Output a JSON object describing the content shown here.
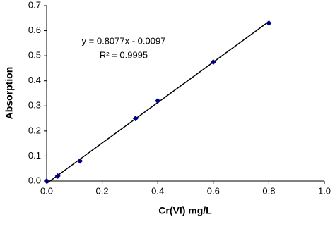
{
  "chart_data": {
    "type": "scatter",
    "x_label": "Cr(VI) mg/L",
    "y_label": "Absorption",
    "equation": "y = 0.8077x - 0.0097",
    "r_squared": "R² = 0.9995",
    "trendline": {
      "slope": 0.8077,
      "intercept": -0.0097
    },
    "series": [
      {
        "name": "Absorption",
        "color": "#000080",
        "x": [
          0,
          0.04,
          0.12,
          0.32,
          0.4,
          0.6,
          0.8
        ],
        "values": [
          0,
          0.02,
          0.08,
          0.25,
          0.32,
          0.475,
          0.63
        ]
      }
    ],
    "xlim": [
      0,
      1
    ],
    "ylim": [
      0,
      0.7
    ],
    "xticks": [
      {
        "value": 0,
        "label": "0.0"
      },
      0.2,
      0.4,
      0.6,
      0.8,
      {
        "value": 1,
        "label": "1.0"
      }
    ],
    "yticks": [
      {
        "value": 0,
        "label": "0.0"
      },
      0.1,
      0.2,
      0.3,
      0.4,
      0.5,
      0.6,
      0.7
    ],
    "grid": false
  }
}
